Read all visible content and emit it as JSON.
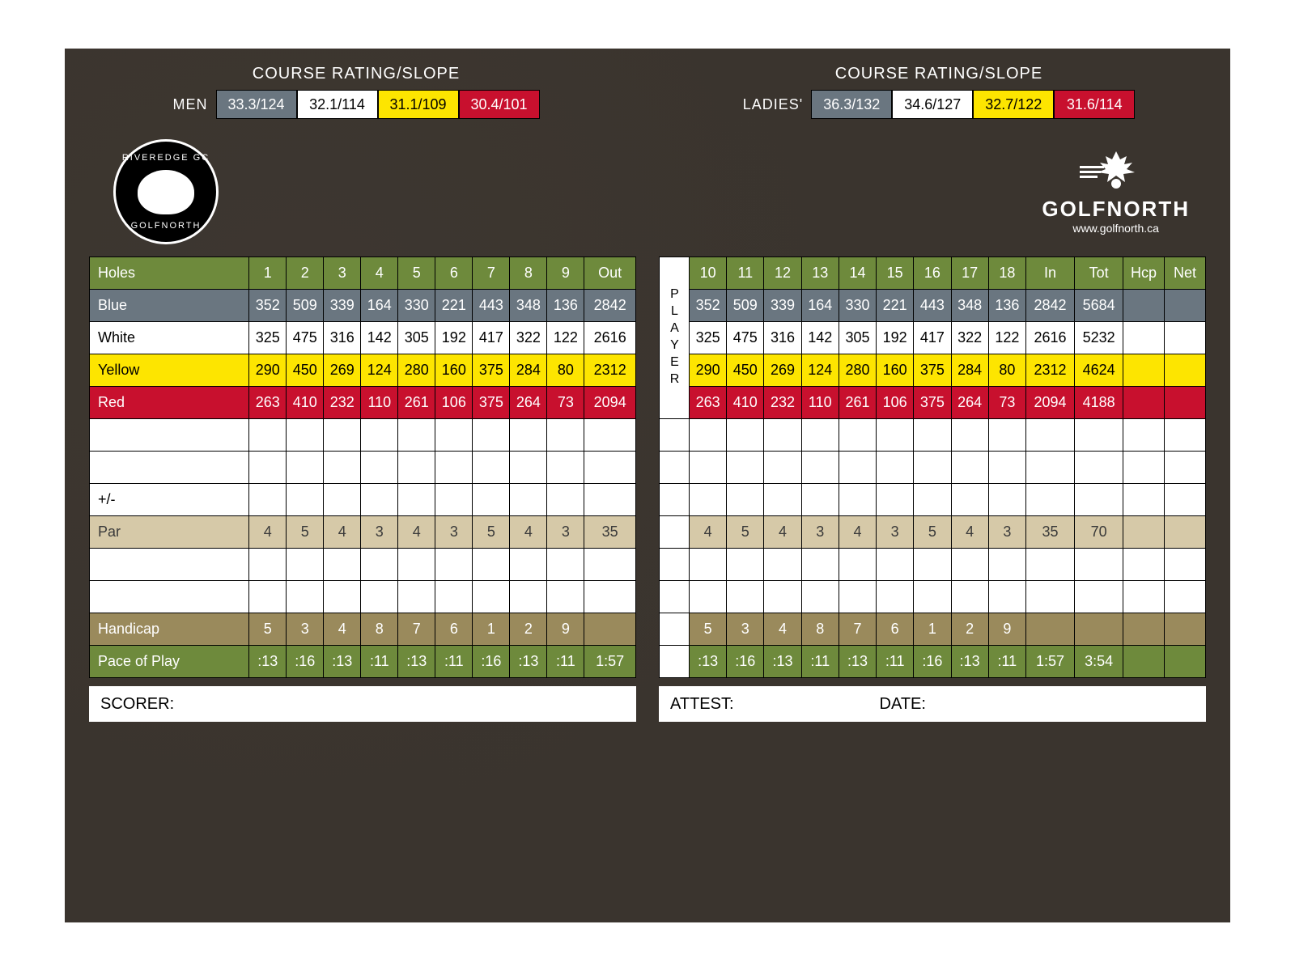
{
  "rating_title": "COURSE RATING/SLOPE",
  "men": {
    "label": "MEN",
    "cells": [
      {
        "text": "33.3/124",
        "bg": "#6a7680",
        "fg": "#ffffff"
      },
      {
        "text": "32.1/114",
        "bg": "#ffffff",
        "fg": "#000000"
      },
      {
        "text": "31.1/109",
        "bg": "#fde500",
        "fg": "#000000"
      },
      {
        "text": "30.4/101",
        "bg": "#c8102e",
        "fg": "#ffffff"
      }
    ]
  },
  "ladies": {
    "label": "LADIES'",
    "cells": [
      {
        "text": "36.3/132",
        "bg": "#6a7680",
        "fg": "#ffffff"
      },
      {
        "text": "34.6/127",
        "bg": "#ffffff",
        "fg": "#000000"
      },
      {
        "text": "32.7/122",
        "bg": "#fde500",
        "fg": "#000000"
      },
      {
        "text": "31.6/114",
        "bg": "#c8102e",
        "fg": "#ffffff"
      }
    ]
  },
  "logo_left": {
    "top": "RIVEREDGE GC",
    "bottom": "GOLFNORTH"
  },
  "logo_right": {
    "name": "GOLFNORTH",
    "url": "www.golfnorth.ca"
  },
  "front": {
    "holes_label": "Holes",
    "holes": [
      "1",
      "2",
      "3",
      "4",
      "5",
      "6",
      "7",
      "8",
      "9",
      "Out"
    ],
    "blue": {
      "label": "Blue",
      "v": [
        "352",
        "509",
        "339",
        "164",
        "330",
        "221",
        "443",
        "348",
        "136",
        "2842"
      ]
    },
    "white": {
      "label": "White",
      "v": [
        "325",
        "475",
        "316",
        "142",
        "305",
        "192",
        "417",
        "322",
        "122",
        "2616"
      ]
    },
    "yellow": {
      "label": "Yellow",
      "v": [
        "290",
        "450",
        "269",
        "124",
        "280",
        "160",
        "375",
        "284",
        "80",
        "2312"
      ]
    },
    "red": {
      "label": "Red",
      "v": [
        "263",
        "410",
        "232",
        "110",
        "261",
        "106",
        "375",
        "264",
        "73",
        "2094"
      ]
    },
    "pm_label": "+/-",
    "par": {
      "label": "Par",
      "v": [
        "4",
        "5",
        "4",
        "3",
        "4",
        "3",
        "5",
        "4",
        "3",
        "35"
      ]
    },
    "hcp": {
      "label": "Handicap",
      "v": [
        "5",
        "3",
        "4",
        "8",
        "7",
        "6",
        "1",
        "2",
        "9",
        ""
      ]
    },
    "pace": {
      "label": "Pace of Play",
      "v": [
        ":13",
        ":16",
        ":13",
        ":11",
        ":13",
        ":11",
        ":16",
        ":13",
        ":11",
        "1:57"
      ]
    }
  },
  "back": {
    "player_label": "PLAYER",
    "holes": [
      "10",
      "11",
      "12",
      "13",
      "14",
      "15",
      "16",
      "17",
      "18",
      "In",
      "Tot",
      "Hcp",
      "Net"
    ],
    "blue": [
      "352",
      "509",
      "339",
      "164",
      "330",
      "221",
      "443",
      "348",
      "136",
      "2842",
      "5684",
      "",
      ""
    ],
    "white": [
      "325",
      "475",
      "316",
      "142",
      "305",
      "192",
      "417",
      "322",
      "122",
      "2616",
      "5232",
      "",
      ""
    ],
    "yellow": [
      "290",
      "450",
      "269",
      "124",
      "280",
      "160",
      "375",
      "284",
      "80",
      "2312",
      "4624",
      "",
      ""
    ],
    "red": [
      "263",
      "410",
      "232",
      "110",
      "261",
      "106",
      "375",
      "264",
      "73",
      "2094",
      "4188",
      "",
      ""
    ],
    "par": [
      "4",
      "5",
      "4",
      "3",
      "4",
      "3",
      "5",
      "4",
      "3",
      "35",
      "70",
      "",
      ""
    ],
    "hcp": [
      "5",
      "3",
      "4",
      "8",
      "7",
      "6",
      "1",
      "2",
      "9",
      "",
      "",
      "",
      ""
    ],
    "pace": [
      ":13",
      ":16",
      ":13",
      ":11",
      ":13",
      ":11",
      ":16",
      ":13",
      ":11",
      "1:57",
      "3:54",
      "",
      ""
    ]
  },
  "footer": {
    "scorer": "SCORER:",
    "attest": "ATTEST:",
    "date": "DATE:"
  },
  "colors": {
    "bg": "#3a342e",
    "green": "#6e8a3c",
    "bluegrey": "#6a7680",
    "yellow": "#fde500",
    "red": "#c8102e",
    "tan": "#d6c9a8",
    "olive": "#9a8a5c"
  }
}
